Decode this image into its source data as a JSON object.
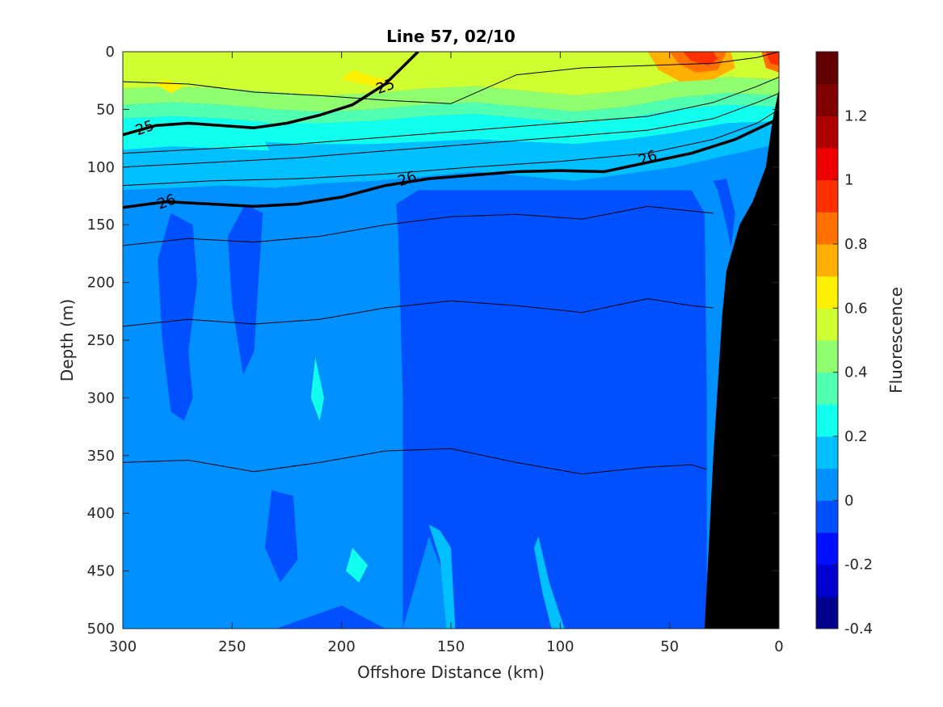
{
  "chart_data": {
    "type": "heatmap",
    "title": "Line 57, 02/10",
    "xlabel": "Offshore Distance (km)",
    "ylabel": "Depth (m)",
    "xlim": [
      300,
      0
    ],
    "ylim": [
      0,
      500
    ],
    "x_reversed": true,
    "y_reversed": true,
    "xticks": [
      "300",
      "250",
      "200",
      "150",
      "100",
      "50",
      "0"
    ],
    "yticks": [
      "0",
      "50",
      "100",
      "150",
      "200",
      "250",
      "300",
      "350",
      "400",
      "450",
      "500"
    ],
    "colorbar": {
      "label": "Fluorescence",
      "range": [
        -0.4,
        1.4
      ],
      "ticks": [
        "-0.4",
        "-0.2",
        "0",
        "0.2",
        "0.4",
        "0.6",
        "0.8",
        "1",
        "1.2"
      ],
      "levels": [
        -0.4,
        -0.3,
        -0.2,
        -0.1,
        0,
        0.1,
        0.2,
        0.3,
        0.4,
        0.5,
        0.6,
        0.7,
        0.8,
        0.9,
        1.0,
        1.1,
        1.2,
        1.3,
        1.4
      ],
      "colors": [
        "#00008f",
        "#0000cf",
        "#0010ff",
        "#0050ff",
        "#0090ff",
        "#00c0ff",
        "#10ffef",
        "#50ffaf",
        "#8fff70",
        "#cfff30",
        "#ffef00",
        "#ffb000",
        "#ff7000",
        "#ff3000",
        "#ef0000",
        "#af0000",
        "#800000",
        "#600000"
      ]
    },
    "fluorescence_bands": [
      {
        "value": 0.6,
        "color": "#cfff30",
        "depth_top": [
          0,
          0,
          0,
          0,
          0,
          0,
          0,
          0,
          0,
          0,
          0,
          0,
          0,
          0
        ],
        "depth_bottom": [
          32,
          30,
          32,
          35,
          38,
          36,
          32,
          30,
          34,
          38,
          34,
          26,
          22,
          24
        ]
      },
      {
        "value": 0.5,
        "color": "#8fff70",
        "depth_top": [
          32,
          30,
          32,
          35,
          38,
          36,
          32,
          30,
          34,
          38,
          34,
          26,
          22,
          24
        ],
        "depth_bottom": [
          46,
          44,
          46,
          50,
          52,
          50,
          46,
          44,
          48,
          52,
          48,
          40,
          36,
          38
        ]
      },
      {
        "value": 0.4,
        "color": "#50ffaf",
        "depth_top": [
          46,
          44,
          46,
          50,
          52,
          50,
          46,
          44,
          48,
          52,
          48,
          40,
          36,
          38
        ],
        "depth_bottom": [
          58,
          56,
          58,
          62,
          62,
          60,
          56,
          54,
          58,
          62,
          58,
          50,
          46,
          48
        ]
      },
      {
        "value": 0.3,
        "color": "#10ffef",
        "depth_top": [
          58,
          56,
          58,
          62,
          62,
          60,
          56,
          54,
          58,
          62,
          58,
          50,
          46,
          48
        ],
        "depth_bottom": [
          85,
          82,
          84,
          86,
          82,
          80,
          78,
          76,
          78,
          80,
          76,
          70,
          62,
          60
        ]
      },
      {
        "value": 0.2,
        "color": "#00c0ff",
        "depth_top": [
          85,
          82,
          84,
          86,
          82,
          80,
          78,
          76,
          78,
          80,
          76,
          70,
          62,
          60
        ],
        "depth_bottom": [
          120,
          118,
          116,
          118,
          114,
          112,
          108,
          104,
          108,
          112,
          106,
          100,
          90,
          80
        ]
      },
      {
        "value": 0.1,
        "color": "#0090ff",
        "depth_top": [
          120,
          118,
          116,
          118,
          114,
          112,
          108,
          104,
          108,
          112,
          106,
          100,
          90,
          80
        ],
        "depth_bottom": [
          500,
          500,
          500,
          500,
          500,
          500,
          500,
          500,
          500,
          500,
          500,
          500,
          500,
          500
        ]
      }
    ],
    "band_x": [
      300,
      277,
      254,
      231,
      208,
      185,
      162,
      139,
      116,
      93,
      70,
      47,
      24,
      0
    ],
    "density_contours": [
      {
        "level": "25",
        "bold": true,
        "x": [
          300,
          285,
          270,
          255,
          240,
          225,
          210,
          195,
          180,
          165
        ],
        "y": [
          72,
          64,
          62,
          64,
          66,
          62,
          55,
          46,
          28,
          0
        ]
      },
      {
        "level": "26",
        "bold": true,
        "x": [
          300,
          280,
          260,
          240,
          220,
          200,
          180,
          160,
          140,
          120,
          100,
          80,
          60,
          40,
          20,
          0
        ],
        "y": [
          135,
          130,
          132,
          134,
          132,
          126,
          116,
          110,
          107,
          104,
          103,
          104,
          96,
          88,
          76,
          58
        ]
      },
      {
        "level": "",
        "bold": false,
        "x": [
          300,
          270,
          240,
          210,
          180,
          150,
          120,
          90,
          60,
          30,
          10,
          0
        ],
        "y": [
          26,
          28,
          35,
          38,
          42,
          45,
          20,
          14,
          12,
          10,
          5,
          0
        ]
      },
      {
        "level": "",
        "bold": false,
        "x": [
          300,
          260,
          220,
          180,
          140,
          100,
          60,
          30,
          10,
          0
        ],
        "y": [
          88,
          84,
          80,
          74,
          68,
          62,
          56,
          44,
          30,
          22
        ]
      },
      {
        "level": "",
        "bold": false,
        "x": [
          300,
          260,
          220,
          180,
          140,
          100,
          60,
          30,
          10,
          0
        ],
        "y": [
          100,
          96,
          92,
          86,
          80,
          74,
          68,
          58,
          44,
          36
        ]
      },
      {
        "level": "",
        "bold": false,
        "x": [
          300,
          260,
          220,
          180,
          140,
          100,
          60,
          30,
          10,
          0
        ],
        "y": [
          116,
          112,
          110,
          106,
          100,
          95,
          88,
          76,
          62,
          50
        ]
      },
      {
        "level": "",
        "bold": false,
        "x": [
          300,
          270,
          240,
          210,
          180,
          150,
          120,
          90,
          60,
          40,
          30
        ],
        "y": [
          168,
          162,
          165,
          160,
          150,
          143,
          141,
          145,
          134,
          138,
          140
        ]
      },
      {
        "level": "",
        "bold": false,
        "x": [
          300,
          270,
          240,
          210,
          180,
          150,
          120,
          90,
          60,
          40,
          30
        ],
        "y": [
          238,
          232,
          236,
          232,
          222,
          216,
          220,
          226,
          214,
          220,
          222
        ]
      },
      {
        "level": "",
        "bold": false,
        "x": [
          300,
          270,
          240,
          210,
          180,
          150,
          120,
          90,
          60,
          40,
          33
        ],
        "y": [
          356,
          354,
          364,
          356,
          346,
          344,
          356,
          366,
          360,
          358,
          362
        ]
      }
    ],
    "contour_labels": [
      {
        "text": "25",
        "x": 290,
        "y": 66
      },
      {
        "text": "25",
        "x": 180,
        "y": 30
      },
      {
        "text": "26",
        "x": 280,
        "y": 130
      },
      {
        "text": "26",
        "x": 170,
        "y": 110
      },
      {
        "text": "26",
        "x": 60,
        "y": 92
      }
    ],
    "bathymetry_x": [
      34,
      30,
      26,
      24,
      18,
      12,
      6,
      3,
      0,
      0
    ],
    "bathymetry_y": [
      500,
      350,
      230,
      190,
      150,
      130,
      100,
      60,
      32,
      500
    ]
  }
}
